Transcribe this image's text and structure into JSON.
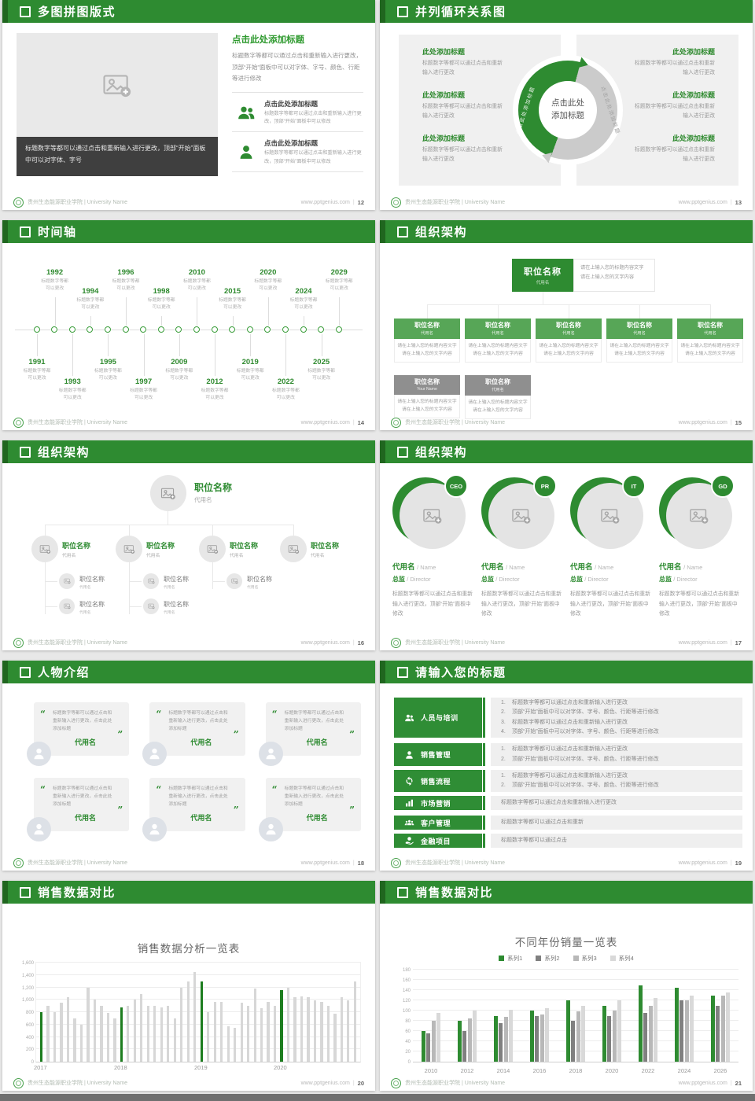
{
  "footer": {
    "school": "贵州生态能源职业学院 | University Name",
    "site": "www.pptgenius.com",
    "sep": "|"
  },
  "slides": [
    {
      "page": "12",
      "title": "多图拼图版式",
      "caption": "标题数字等都可以通过点击和重新输入进行更改，顶部“开始”面板中可以对字体、字号",
      "heading": "点击此处添加标题",
      "paragraph": "标题数字等都可以通过点击和重新输入进行更改，顶部“开始”面板中可以对字体、字号、颜色、行距等进行修改",
      "items": [
        {
          "icon": "people-icon",
          "heading": "点击此处添加标题",
          "text": "标题数字等都可以通过点击和重新输入进行更改，顶部“开始”面板中可以修改"
        },
        {
          "icon": "person-icon",
          "heading": "点击此处添加标题",
          "text": "标题数字等都可以通过点击和重新输入进行更改，顶部“开始”面板中可以修改"
        }
      ]
    },
    {
      "page": "13",
      "title": "并列循环关系图",
      "center": "点击此处添加标题",
      "arc_label_left": "点击此处添加标题",
      "arc_label_right": "点击此处添加标题",
      "left_items": [
        {
          "heading": "此处添加标题",
          "text": "标题数字等都可以通过点击和重新输入进行更改"
        },
        {
          "heading": "此处添加标题",
          "text": "标题数字等都可以通过点击和重新输入进行更改"
        },
        {
          "heading": "此处添加标题",
          "text": "标题数字等都可以通过点击和重新输入进行更改"
        }
      ],
      "right_items": [
        {
          "heading": "此处添加标题",
          "text": "标题数字等都可以通过点击和重新输入进行更改"
        },
        {
          "heading": "此处添加标题",
          "text": "标题数字等都可以通过点击和重新输入进行更改"
        },
        {
          "heading": "此处添加标题",
          "text": "标题数字等都可以通过点击和重新输入进行更改"
        }
      ]
    },
    {
      "page": "14",
      "title": "时间轴",
      "note1": "标题数字等都",
      "note2": "可以更改",
      "entries": [
        {
          "year": "1991",
          "pos": "below"
        },
        {
          "year": "1992",
          "pos": "above"
        },
        {
          "year": "1993",
          "pos": "below"
        },
        {
          "year": "1994",
          "pos": "above"
        },
        {
          "year": "1995",
          "pos": "below"
        },
        {
          "year": "1996",
          "pos": "above"
        },
        {
          "year": "1997",
          "pos": "below"
        },
        {
          "year": "1998",
          "pos": "above"
        },
        {
          "year": "2009",
          "pos": "below"
        },
        {
          "year": "2010",
          "pos": "above"
        },
        {
          "year": "2012",
          "pos": "below"
        },
        {
          "year": "2015",
          "pos": "above"
        },
        {
          "year": "2019",
          "pos": "below"
        },
        {
          "year": "2020",
          "pos": "above"
        },
        {
          "year": "2022",
          "pos": "below"
        },
        {
          "year": "2024",
          "pos": "above"
        },
        {
          "year": "2025",
          "pos": "below"
        },
        {
          "year": "2029",
          "pos": "above"
        }
      ]
    },
    {
      "page": "15",
      "title": "组织架构",
      "top_title": "职位名称",
      "top_sub": "代用名",
      "side_line1": "请在上输入您的标题内容文字",
      "side_line2": "请在上输入您的文字内容",
      "cards_row1": [
        {
          "title": "职位名称",
          "sub": "代用名",
          "line1": "请在上输入您的标题内容文字",
          "line2": "请在上输入您的文字内容"
        },
        {
          "title": "职位名称",
          "sub": "代用名",
          "line1": "请在上输入您的标题内容文字",
          "line2": "请在上输入您的文字内容"
        },
        {
          "title": "职位名称",
          "sub": "代用名",
          "line1": "请在上输入您的标题内容文字",
          "line2": "请在上输入您的文字内容"
        },
        {
          "title": "职位名称",
          "sub": "代用名",
          "line1": "请在上输入您的标题内容文字",
          "line2": "请在上输入您的文字内容"
        },
        {
          "title": "职位名称",
          "sub": "代用名",
          "line1": "请在上输入您的标题内容文字",
          "line2": "请在上输入您的文字内容"
        }
      ],
      "cards_row2": [
        {
          "title": "职位名称",
          "sub": "Your Name",
          "line1": "请在上输入您的标题内容文字",
          "line2": "请在上输入您的文字内容"
        },
        {
          "title": "职位名称",
          "sub": "代用名",
          "line1": "请在上输入您的标题内容文字",
          "line2": "请在上输入您的文字内容"
        }
      ]
    },
    {
      "page": "16",
      "title": "组织架构",
      "root": {
        "title": "职位名称",
        "sub": "代用名"
      },
      "nodes": [
        {
          "title": "职位名称",
          "sub": "代用名",
          "subs": 2
        },
        {
          "title": "职位名称",
          "sub": "代用名",
          "subs": 2
        },
        {
          "title": "职位名称",
          "sub": "代用名",
          "subs": 1
        },
        {
          "title": "职位名称",
          "sub": "代用名",
          "subs": 0
        }
      ],
      "sub_title": "职位名称",
      "sub_sub": "代用名"
    },
    {
      "page": "17",
      "title": "组织架构",
      "cards": [
        {
          "badge": "CEO",
          "name": "代用名",
          "name_en": "/ Name",
          "role": "总监",
          "role_en": "/  Director",
          "text": "标题数字等都可以通过点击和重新输入进行更改，顶部“开始”面板中修改"
        },
        {
          "badge": "PR",
          "name": "代用名",
          "name_en": "/ Name",
          "role": "总监",
          "role_en": "/  Director",
          "text": "标题数字等都可以通过点击和重新输入进行更改，顶部“开始”面板中修改"
        },
        {
          "badge": "IT",
          "name": "代用名",
          "name_en": "/ Name",
          "role": "总监",
          "role_en": "/  Director",
          "text": "标题数字等都可以通过点击和重新输入进行更改，顶部“开始”面板中修改"
        },
        {
          "badge": "GD",
          "name": "代用名",
          "name_en": "/ Name",
          "role": "总监",
          "role_en": "/  Director",
          "text": "标题数字等都可以通过点击和重新输入进行更改，顶部“开始”面板中修改"
        }
      ]
    },
    {
      "page": "18",
      "title": "人物介绍",
      "quote_open": "“",
      "quote_close": "”",
      "cards": [
        {
          "text": "标题数字等都可以通过点击和重新输入进行更改，点击此处添加标题",
          "name": "代用名"
        },
        {
          "text": "标题数字等都可以通过点击和重新输入进行更改，点击此处添加标题",
          "name": "代用名"
        },
        {
          "text": "标题数字等都可以通过点击和重新输入进行更改，点击此处添加标题",
          "name": "代用名"
        },
        {
          "text": "标题数字等都可以通过点击和重新输入进行更改，点击此处添加标题",
          "name": "代用名"
        },
        {
          "text": "标题数字等都可以通过点击和重新输入进行更改，点击此处添加标题",
          "name": "代用名"
        },
        {
          "text": "标题数字等都可以通过点击和重新输入进行更改，点击此处添加标题",
          "name": "代用名"
        }
      ]
    },
    {
      "page": "19",
      "title": "请输入您的标题",
      "rows": [
        {
          "icon": "people-icon",
          "label": "人员与培训",
          "numbered": true,
          "lines": [
            "标题数字等都可以通过点击和重新输入进行更改",
            "顶部“开始”面板中可以对字体、字号、颜色、行距等进行修改",
            "标题数字等都可以通过点击和重新输入进行更改",
            "顶部“开始”面板中可以对字体、字号、颜色、行距等进行修改"
          ]
        },
        {
          "icon": "person-icon",
          "label": "销售管理",
          "numbered": true,
          "lines": [
            "标题数字等都可以通过点击和重新输入进行更改",
            "顶部“开始”面板中可以对字体、字号、颜色、行距等进行修改"
          ]
        },
        {
          "icon": "cycle-icon",
          "label": "销售流程",
          "numbered": true,
          "lines": [
            "标题数字等都可以通过点击和重新输入进行更改",
            "顶部“开始”面板中可以对字体、字号、颜色、行距等进行修改"
          ]
        },
        {
          "icon": "bar-chart-icon",
          "label": "市场营销",
          "numbered": false,
          "lines": [
            "标题数字等都可以通过点击和重新输入进行更改"
          ]
        },
        {
          "icon": "group-icon",
          "label": "客户管理",
          "numbered": false,
          "lines": [
            "标题数字等都可以通过点击和重新"
          ]
        },
        {
          "icon": "finance-icon",
          "label": "金融项目",
          "numbered": false,
          "lines": [
            "标题数字等都可以通过点击"
          ]
        }
      ]
    },
    {
      "page": "20",
      "title": "销售数据对比"
    },
    {
      "page": "21",
      "title": "销售数据对比"
    }
  ],
  "chart_data": [
    {
      "type": "bar",
      "title": "销售数据分析一览表",
      "categories": [
        "2017",
        "2018",
        "2019",
        "2020"
      ],
      "category_start_indices": [
        0,
        12,
        24,
        36
      ],
      "values": [
        800,
        900,
        800,
        950,
        1040,
        700,
        600,
        1200,
        1000,
        900,
        790,
        700,
        880,
        900,
        1000,
        1090,
        900,
        900,
        880,
        900,
        700,
        1200,
        1300,
        1450,
        1300,
        800,
        960,
        960,
        570,
        540,
        950,
        900,
        1180,
        860,
        960,
        900,
        1150,
        1200,
        1040,
        1050,
        1040,
        990,
        960,
        900,
        780,
        1040,
        990,
        1300
      ],
      "highlight_indices": [
        0,
        12,
        24,
        36
      ],
      "bar_color": "#d7d7d7",
      "highlight_color": "#1d7d1f",
      "ylim": [
        0,
        1600
      ],
      "yticks": [
        "0",
        "200",
        "400",
        "600",
        "800",
        "1,000",
        "1,200",
        "1,400",
        "1,600"
      ],
      "grid": true,
      "xlabel": "",
      "ylabel": ""
    },
    {
      "type": "bar",
      "title": "不同年份销量一览表",
      "legend_position": "top",
      "categories": [
        "2010",
        "2012",
        "2014",
        "2016",
        "2018",
        "2020",
        "2022",
        "2024",
        "2026"
      ],
      "series": [
        {
          "name": "系列1",
          "color": "#2e8b31",
          "values": [
            60,
            80,
            90,
            100,
            120,
            110,
            150,
            145,
            130
          ]
        },
        {
          "name": "系列2",
          "color": "#808080",
          "values": [
            55,
            60,
            75,
            90,
            80,
            90,
            95,
            120,
            110
          ]
        },
        {
          "name": "系列3",
          "color": "#b8b8b8",
          "values": [
            80,
            85,
            88,
            92,
            98,
            100,
            110,
            120,
            130
          ]
        },
        {
          "name": "系列4",
          "color": "#d9d9d9",
          "values": [
            95,
            100,
            102,
            105,
            110,
            120,
            125,
            130,
            135
          ]
        }
      ],
      "ylim": [
        0,
        180
      ],
      "yticks": [
        "0",
        "20",
        "40",
        "60",
        "80",
        "100",
        "120",
        "140",
        "160",
        "180"
      ],
      "grid": true,
      "xlabel": "",
      "ylabel": ""
    }
  ],
  "colors": {
    "header_green": "#2e8b31",
    "accent_green": "#2f9a2f",
    "panel_gray": "#f0f0f0",
    "caption_dark": "#3f3f3f"
  }
}
